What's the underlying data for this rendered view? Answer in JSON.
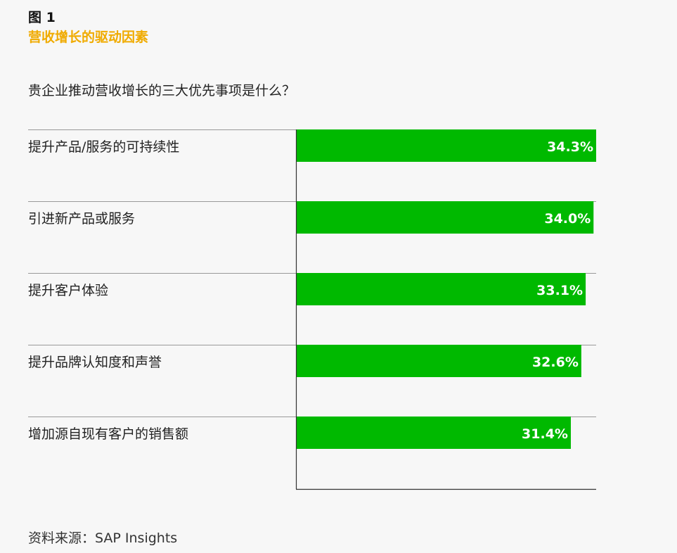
{
  "figure": {
    "label": "图 1",
    "title": "营收增长的驱动因素",
    "question": "贵企业推动营收增长的三大优先事项是什么？",
    "source": "资料来源：SAP Insights"
  },
  "colors": {
    "bar": "#00b900",
    "title": "#f0ab00",
    "rule": "#999999",
    "axis": "#333333"
  },
  "chart_data": {
    "type": "bar",
    "orientation": "horizontal",
    "categories": [
      "提升产品/服务的可持续性",
      "引进新产品或服务",
      "提升客户体验",
      "提升品牌认知度和声誉",
      "增加源自现有客户的销售额"
    ],
    "values": [
      34.3,
      34.0,
      33.1,
      32.6,
      31.4
    ],
    "value_labels": [
      "34.3%",
      "34.0%",
      "33.1%",
      "32.6%",
      "31.4%"
    ],
    "unit": "%",
    "xlim": [
      0,
      34.3
    ],
    "grid": false,
    "legend": "none"
  }
}
